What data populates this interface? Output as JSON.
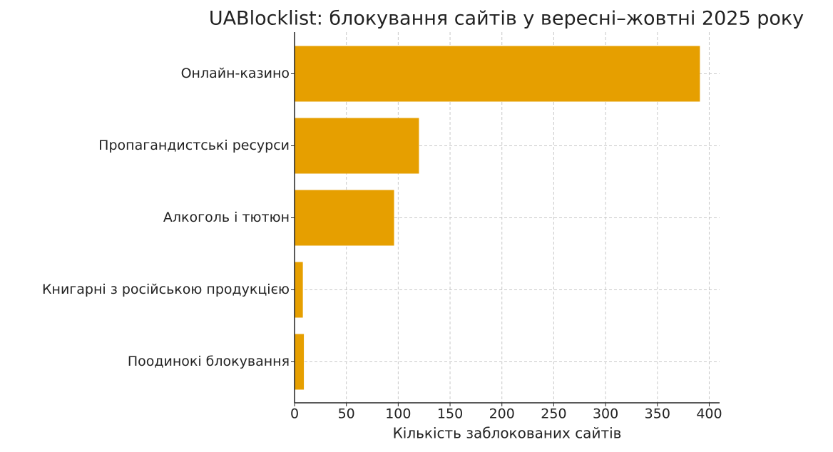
{
  "chart_data": {
    "type": "bar",
    "orientation": "horizontal",
    "title": "UABlocklist: блокування сайтів у вересні–жовтні 2025 року",
    "xlabel": "Кількість заблокованих сайтів",
    "categories": [
      "Онлайн-казино",
      "Пропагандистські ресурси",
      "Алкоголь і тютюн",
      "Книгарні з російською продукцією",
      "Поодинокі блокування"
    ],
    "values": [
      391,
      120,
      96,
      8,
      9
    ],
    "color": "#e69f00",
    "xlim": [
      0,
      410
    ],
    "xticks": [
      0,
      50,
      100,
      150,
      200,
      250,
      300,
      350,
      400
    ],
    "grid": true
  }
}
